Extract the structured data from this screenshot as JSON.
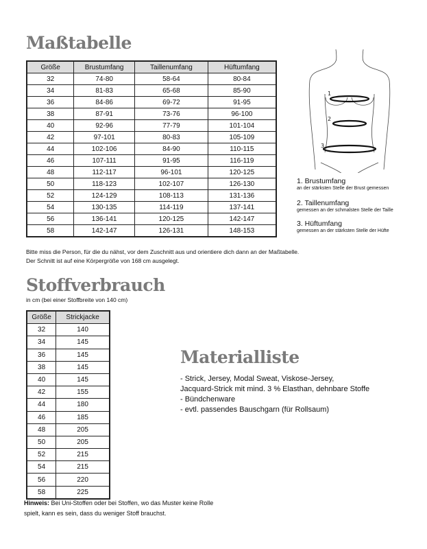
{
  "measure": {
    "title": "Maßtabelle",
    "headers": [
      "Größe",
      "Brustumfang",
      "Taillenumfang",
      "Hüftumfang"
    ],
    "rows": [
      [
        "32",
        "74-80",
        "58-64",
        "80-84"
      ],
      [
        "34",
        "81-83",
        "65-68",
        "85-90"
      ],
      [
        "36",
        "84-86",
        "69-72",
        "91-95"
      ],
      [
        "38",
        "87-91",
        "73-76",
        "96-100"
      ],
      [
        "40",
        "92-96",
        "77-79",
        "101-104"
      ],
      [
        "42",
        "97-101",
        "80-83",
        "105-109"
      ],
      [
        "44",
        "102-106",
        "84-90",
        "110-115"
      ],
      [
        "46",
        "107-111",
        "91-95",
        "116-119"
      ],
      [
        "48",
        "112-117",
        "96-101",
        "120-125"
      ],
      [
        "50",
        "118-123",
        "102-107",
        "126-130"
      ],
      [
        "52",
        "124-129",
        "108-113",
        "131-136"
      ],
      [
        "54",
        "130-135",
        "114-119",
        "137-141"
      ],
      [
        "56",
        "136-141",
        "120-125",
        "142-147"
      ],
      [
        "58",
        "142-147",
        "126-131",
        "148-153"
      ]
    ],
    "note1": "Bitte miss die Person, für die du nähst, vor dem Zuschnitt aus und orientiere dich dann an der Maßtabelle.",
    "note2": "Der Schnitt ist auf eine Körpergröße von 168 cm ausgelegt."
  },
  "figure": {
    "markers": [
      "1",
      "2",
      "3"
    ],
    "labels": [
      {
        "title": "1. Brustumfang",
        "desc": "an der stärksten Stelle der Brust gemessen"
      },
      {
        "title": "2. Taillenumfang",
        "desc": "gemessen an der schmalsten Stelle der Taille"
      },
      {
        "title": "3. Hüftumfang",
        "desc": "gemessen an der stärksten Stelle der Hüfte"
      }
    ]
  },
  "fabric": {
    "title": "Stoffverbrauch",
    "subtitle": "in cm (bei einer Stoffbreite von 140 cm)",
    "headers": [
      "Größe",
      "Strickjacke"
    ],
    "rows": [
      [
        "32",
        "140"
      ],
      [
        "34",
        "145"
      ],
      [
        "36",
        "145"
      ],
      [
        "38",
        "145"
      ],
      [
        "40",
        "145"
      ],
      [
        "42",
        "155"
      ],
      [
        "44",
        "180"
      ],
      [
        "46",
        "185"
      ],
      [
        "48",
        "205"
      ],
      [
        "50",
        "205"
      ],
      [
        "52",
        "215"
      ],
      [
        "54",
        "215"
      ],
      [
        "56",
        "220"
      ],
      [
        "58",
        "225"
      ]
    ],
    "hint_label": "Hinweis:",
    "hint_line1": " Bei Uni-Stoffen oder bei Stoffen, wo das Muster keine Rolle",
    "hint_line2": "spielt, kann es sein, dass du weniger Stoff brauchst."
  },
  "materials": {
    "title": "Materialliste",
    "items": [
      "- Strick, Jersey, Modal Sweat, Viskose-Jersey,",
      "Jacquard-Strick mit mind. 3 % Elasthan, dehnbare Stoffe",
      "- Bündchenware",
      "- evtl. passendes Bauschgarn (für Rollsaum)"
    ]
  }
}
